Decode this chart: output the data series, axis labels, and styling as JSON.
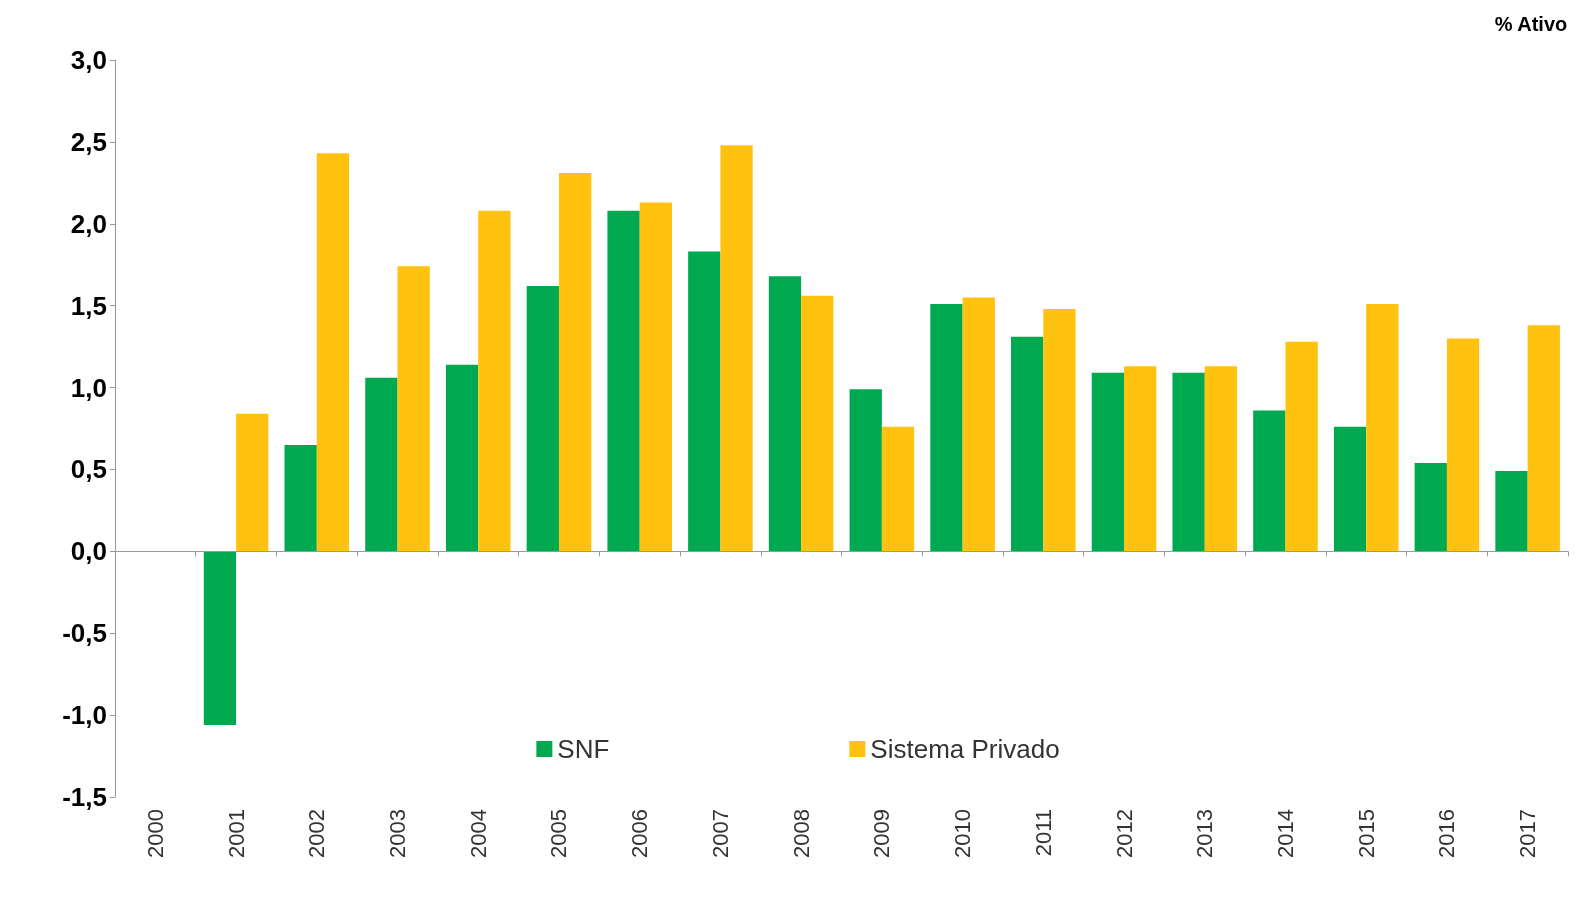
{
  "chart_data": {
    "type": "bar",
    "ylabel": "% Ativo",
    "categories": [
      "2000",
      "2001",
      "2002",
      "2003",
      "2004",
      "2005",
      "2006",
      "2007",
      "2008",
      "2009",
      "2010",
      "2011",
      "2012",
      "2013",
      "2014",
      "2015",
      "2016",
      "2017"
    ],
    "series": [
      {
        "name": "SNF",
        "color": "#00a94f",
        "values": [
          null,
          -1.06,
          0.65,
          1.06,
          1.14,
          1.62,
          2.08,
          1.83,
          1.68,
          0.99,
          1.51,
          1.31,
          1.09,
          1.09,
          0.86,
          0.76,
          0.54,
          0.49
        ]
      },
      {
        "name": "Sistema Privado",
        "color": "#ffc20e",
        "values": [
          null,
          0.84,
          2.43,
          1.74,
          2.08,
          2.31,
          2.13,
          2.48,
          1.56,
          0.76,
          1.55,
          1.48,
          1.13,
          1.13,
          1.28,
          1.51,
          1.3,
          1.38
        ]
      }
    ],
    "ylim": [
      -1.5,
      3.0
    ],
    "yticks": [
      {
        "value": -1.5,
        "label": "-1,5"
      },
      {
        "value": -1.0,
        "label": "-1,0"
      },
      {
        "value": -0.5,
        "label": "-0,5"
      },
      {
        "value": 0,
        "label": "0,0"
      },
      {
        "value": 0.5,
        "label": "0,5"
      },
      {
        "value": 1.0,
        "label": "1,0"
      },
      {
        "value": 1.5,
        "label": "1,5"
      },
      {
        "value": 2.0,
        "label": "2,0"
      },
      {
        "value": 2.5,
        "label": "2,5"
      },
      {
        "value": 3.0,
        "label": "3,0"
      }
    ],
    "ref_lines": [
      {
        "axis": "y",
        "value": 0,
        "color": "#999999"
      }
    ],
    "grid": false,
    "legend": "bottom"
  }
}
